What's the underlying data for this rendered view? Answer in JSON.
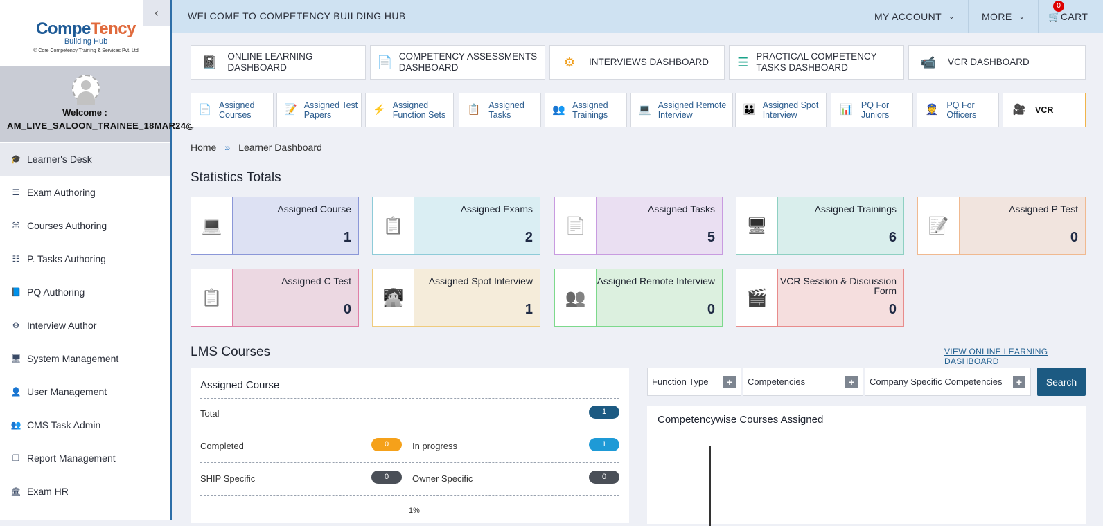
{
  "brand": {
    "logo_main_a": "Compe",
    "logo_main_b": "Tency",
    "logo_sub": "Building Hub",
    "logo_tiny": "© Core Competency Training & Services Pvt. Ltd"
  },
  "profile": {
    "welcome": "Welcome :",
    "username": "AM_LIVE_SALOON_TRAINEE_18MAR24@"
  },
  "nav": [
    {
      "label": "Learner's Desk",
      "icon": "graduation-cap-icon",
      "glyph": "🎓"
    },
    {
      "label": "Exam Authoring",
      "icon": "list-icon",
      "glyph": "☰"
    },
    {
      "label": "Courses Authoring",
      "icon": "sitemap-icon",
      "glyph": "⌘"
    },
    {
      "label": "P. Tasks Authoring",
      "icon": "tasks-icon",
      "glyph": "☷"
    },
    {
      "label": "PQ Authoring",
      "icon": "book-icon",
      "glyph": "📘"
    },
    {
      "label": "Interview Author",
      "icon": "gears-icon",
      "glyph": "⚙"
    },
    {
      "label": "System Management",
      "icon": "desktop-icon",
      "glyph": "🖥"
    },
    {
      "label": "User Management",
      "icon": "user-icon",
      "glyph": "👤"
    },
    {
      "label": "CMS Task Admin",
      "icon": "user-plus-icon",
      "glyph": "👥"
    },
    {
      "label": "Report Management",
      "icon": "copy-icon",
      "glyph": "❐"
    },
    {
      "label": "Exam HR",
      "icon": "bank-icon",
      "glyph": "🏛"
    }
  ],
  "topbar": {
    "title": "WELCOME TO COMPETENCY BUILDING HUB",
    "my_account": "MY ACCOUNT",
    "more": "MORE",
    "cart": "CART",
    "cart_count": "0"
  },
  "dashboards": [
    {
      "label": "ONLINE LEARNING DASHBOARD",
      "icon": "book-icon",
      "glyph": "📓"
    },
    {
      "label": "COMPETENCY ASSESSMENTS DASHBOARD",
      "icon": "documents-icon",
      "glyph": "📄"
    },
    {
      "label": "INTERVIEWS DASHBOARD",
      "icon": "gears-icon",
      "glyph": "⚙"
    },
    {
      "label": "PRACTICAL COMPETENCY TASKS DASHBOARD",
      "icon": "server-icon",
      "glyph": "☰"
    },
    {
      "label": "VCR DASHBOARD",
      "icon": "video-file-icon",
      "glyph": "📹"
    }
  ],
  "assigned_tabs": [
    {
      "label": "Assigned Courses",
      "icon": "courses-icon",
      "glyph": "📄"
    },
    {
      "label": "Assigned Test Papers",
      "icon": "test-paper-icon",
      "glyph": "📝"
    },
    {
      "label": "Assigned Function Sets",
      "icon": "function-sets-icon",
      "glyph": "⚡"
    },
    {
      "label": "Assigned Tasks",
      "icon": "clipboard-icon",
      "glyph": "📋"
    },
    {
      "label": "Assigned Trainings",
      "icon": "trainings-icon",
      "glyph": "👥"
    },
    {
      "label": "Assigned Remote Interview",
      "icon": "remote-interview-icon",
      "glyph": "💻"
    },
    {
      "label": "Assigned Spot Interview",
      "icon": "spot-interview-icon",
      "glyph": "👪"
    },
    {
      "label": "PQ For Juniors",
      "icon": "pq-juniors-icon",
      "glyph": "📊"
    },
    {
      "label": "PQ For Officers",
      "icon": "officer-icon",
      "glyph": "👮"
    },
    {
      "label": "VCR",
      "icon": "vcr-icon",
      "glyph": "🎥"
    }
  ],
  "breadcrumb": {
    "home": "Home",
    "current": "Learner Dashboard",
    "sep": "»"
  },
  "statistics": {
    "title": "Statistics Totals",
    "cards": [
      {
        "label": "Assigned Course",
        "value": "1",
        "icon": "laptop-book-icon"
      },
      {
        "label": "Assigned Exams",
        "value": "2",
        "icon": "exam-checklist-icon"
      },
      {
        "label": "Assigned Tasks",
        "value": "5",
        "icon": "task-list-icon"
      },
      {
        "label": "Assigned Trainings",
        "value": "6",
        "icon": "training-laptop-icon"
      },
      {
        "label": "Assigned P Test",
        "value": "0",
        "icon": "p-test-icon"
      },
      {
        "label": "Assigned C Test",
        "value": "0",
        "icon": "c-test-icon"
      },
      {
        "label": "Assigned Spot Interview",
        "value": "1",
        "icon": "spot-interview-icon"
      },
      {
        "label": "Assigned Remote Interview",
        "value": "0",
        "icon": "remote-interview-icon"
      },
      {
        "label": "VCR Session & Discussion Form",
        "value": "0",
        "icon": "vcr-session-icon"
      }
    ]
  },
  "colors": {
    "card_bg": [
      "#dde1f3",
      "#daeef3",
      "#eadff2",
      "#d9eeec",
      "#f1e4de",
      "#ecd8e2",
      "#f5ecda",
      "#dcf0df",
      "#f5dede"
    ],
    "card_border": [
      "#8b97d8",
      "#8ecbd8",
      "#c89be0",
      "#8ed0c2",
      "#f0b990",
      "#e07fa6",
      "#efcb7d",
      "#7dd98c",
      "#e88c8c"
    ]
  },
  "lms": {
    "title": "LMS Courses",
    "link": "VIEW ONLINE LEARNING DASHBOARD",
    "card_title": "Assigned Course",
    "total_label": "Total",
    "total": "1",
    "completed_label": "Completed",
    "completed": "0",
    "in_progress_label": "In progress",
    "in_progress": "1",
    "ship_label": "SHIP Specific",
    "ship": "0",
    "owner_label": "Owner Specific",
    "owner": "0",
    "percent": "1%"
  },
  "filters": {
    "function_type": "Function Type",
    "competencies": "Competencies",
    "company": "Company Specific Competencies",
    "search": "Search"
  },
  "chart": {
    "title": "Competencywise Courses Assigned"
  }
}
